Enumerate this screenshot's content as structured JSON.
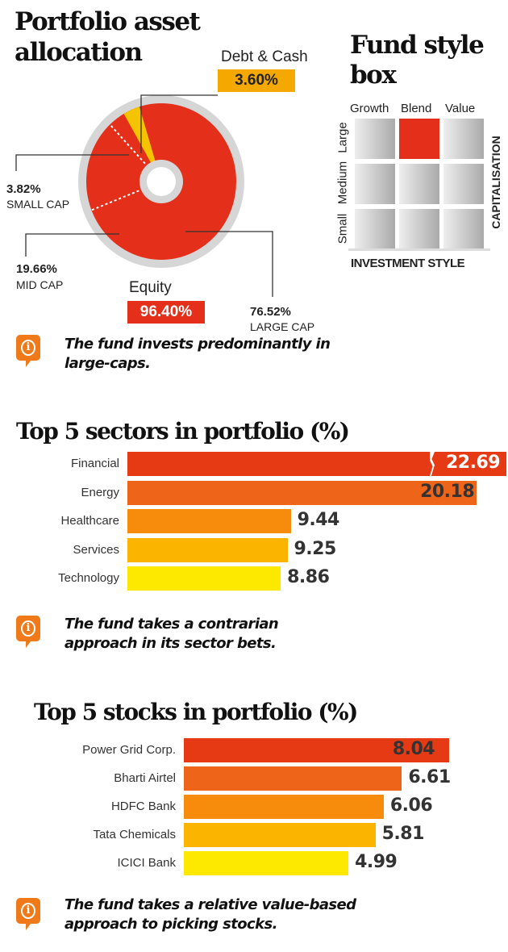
{
  "allocation": {
    "title": "Portfolio asset allocation",
    "debt_label": "Debt & Cash",
    "debt_value": "3.60%",
    "equity_label": "Equity",
    "equity_value": "96.40%",
    "small_pct": "3.82%",
    "small_label": "SMALL CAP",
    "mid_pct": "19.66%",
    "mid_label": "MID CAP",
    "large_pct": "76.52%",
    "large_label": "LARGE CAP",
    "note": "The fund invests predominantly in large-caps."
  },
  "style_box": {
    "title": "Fund style box",
    "columns": [
      "Growth",
      "Blend",
      "Value"
    ],
    "rows": [
      "Large",
      "Medium",
      "Small"
    ],
    "y_axis": "CAPITALISATION",
    "x_axis": "INVESTMENT STYLE",
    "highlight": {
      "row": "Large",
      "column": "Blend"
    },
    "highlight_color": "#e4301a"
  },
  "sectors": {
    "title": "Top 5 sectors in portfolio (%)",
    "note": "The fund takes a contrarian approach in its sector bets."
  },
  "stocks": {
    "title": "Top 5 stocks in portfolio (%)",
    "note": "The fund takes a relative value-based approach to picking stocks."
  },
  "chart_data": [
    {
      "type": "pie",
      "title": "Portfolio asset allocation",
      "slices": [
        {
          "label": "Debt & Cash",
          "value": 3.6,
          "color": "#f5c400"
        },
        {
          "label": "Equity",
          "value": 96.4,
          "color": "#e4301a"
        }
      ],
      "equity_breakdown": [
        {
          "label": "LARGE CAP",
          "value": 76.52
        },
        {
          "label": "MID CAP",
          "value": 19.66
        },
        {
          "label": "SMALL CAP",
          "value": 3.82
        }
      ]
    },
    {
      "type": "bar",
      "title": "Top 5 sectors in portfolio (%)",
      "categories": [
        "Financial",
        "Energy",
        "Healthcare",
        "Services",
        "Technology"
      ],
      "values": [
        22.69,
        20.18,
        9.44,
        9.25,
        8.86
      ],
      "colors": [
        "#e63a14",
        "#ee6418",
        "#f78b0c",
        "#fbb500",
        "#fde800"
      ],
      "broken_bar": "Financial"
    },
    {
      "type": "bar",
      "title": "Top 5 stocks in portfolio (%)",
      "categories": [
        "Power Grid Corp.",
        "Bharti Airtel",
        "HDFC Bank",
        "Tata Chemicals",
        "ICICI Bank"
      ],
      "values": [
        8.04,
        6.61,
        6.06,
        5.81,
        4.99
      ],
      "colors": [
        "#e63a14",
        "#ee6418",
        "#f78b0c",
        "#fbb500",
        "#fde800"
      ]
    }
  ]
}
